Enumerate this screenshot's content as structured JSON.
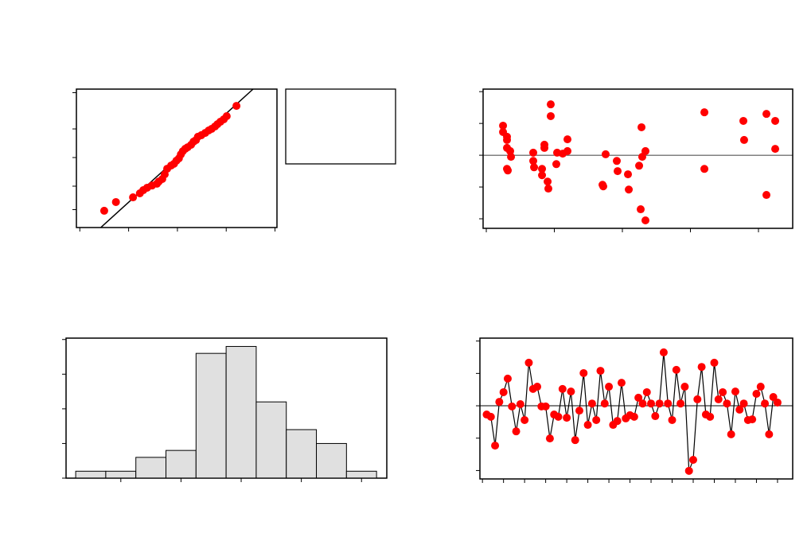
{
  "chart_data": [
    {
      "type": "probability",
      "color": "#ff0000",
      "x": [
        -1.5,
        -1.26,
        -0.91,
        -0.77,
        -0.7,
        -0.62,
        -0.52,
        -0.42,
        -0.38,
        -0.31,
        -0.26,
        -0.21,
        -0.13,
        -0.07,
        -0.02,
        0.03,
        0.07,
        0.11,
        0.16,
        0.21,
        0.28,
        0.33,
        0.38,
        0.42,
        0.49,
        0.57,
        0.64,
        0.7,
        0.77,
        0.82,
        0.88,
        0.95,
        1.01,
        1.21
      ],
      "y": [
        -2.38,
        -1.99,
        -1.78,
        -1.6,
        -1.46,
        -1.35,
        -1.25,
        -1.17,
        -1.07,
        -0.96,
        -0.75,
        -0.5,
        -0.36,
        -0.28,
        -0.14,
        -0.04,
        0.14,
        0.28,
        0.39,
        0.46,
        0.57,
        0.71,
        0.78,
        0.93,
        1.0,
        1.1,
        1.21,
        1.28,
        1.39,
        1.49,
        1.6,
        1.71,
        1.85,
        2.31
      ],
      "fit_line": {
        "x": [
          -1.57,
          1.55
        ],
        "y": [
          -3.13,
          3.06
        ]
      },
      "xlim": [
        -2.07,
        2.04
      ],
      "xticks": [
        -2,
        -1,
        0,
        1,
        2
      ],
      "ylim": [
        -3.13,
        3.06
      ],
      "yticks": [
        -2.33,
        -1.28,
        0,
        1.28,
        2.9
      ]
    },
    {
      "type": "scatter",
      "color": "#ff0000",
      "x": [
        12.46,
        12.46,
        13.04,
        13.04,
        13.04,
        13.51,
        13.63,
        13.04,
        13.16,
        16.9,
        16.9,
        17.02,
        18.19,
        18.19,
        19.01,
        19.12,
        18.54,
        18.54,
        19.47,
        19.47,
        20.29,
        20.41,
        21.23,
        21.93,
        21.93,
        27.08,
        27.19,
        27.54,
        29.18,
        29.3,
        30.82,
        30.94,
        32.46,
        32.69,
        32.81,
        32.92,
        33.39,
        33.39,
        42.05,
        42.05,
        47.78,
        47.89,
        51.17,
        51.17,
        52.46,
        52.46
      ],
      "y": [
        0.93,
        0.73,
        0.58,
        0.48,
        0.23,
        0.13,
        -0.05,
        -0.43,
        -0.48,
        0.08,
        -0.18,
        -0.38,
        -0.43,
        -0.63,
        -0.83,
        -1.05,
        0.23,
        0.33,
        1.6,
        1.23,
        -0.28,
        0.08,
        0.05,
        0.5,
        0.13,
        -0.93,
        -0.98,
        0.03,
        -0.18,
        -0.5,
        -0.6,
        -1.08,
        -0.33,
        -1.7,
        0.88,
        -0.05,
        -2.05,
        0.13,
        1.35,
        -0.43,
        1.08,
        0.48,
        1.3,
        -1.25,
        1.08,
        0.2
      ],
      "reference_line": 0,
      "xlim": [
        9.53,
        55.03
      ],
      "xticks": [
        10,
        20,
        30,
        40,
        50
      ],
      "ylim": [
        -2.3,
        2.08
      ],
      "yticks": [
        -2,
        -1,
        0,
        1,
        2
      ]
    },
    {
      "type": "histogram",
      "color": "#e0e0e0",
      "bins": [
        -2.75,
        -2.25,
        -1.75,
        -1.25,
        -0.75,
        -0.25,
        0.25,
        0.75,
        1.25,
        1.75,
        2.25
      ],
      "counts": [
        1,
        1,
        3,
        4,
        18,
        19,
        11,
        7,
        5,
        1
      ],
      "xlim": [
        -2.91,
        2.42
      ],
      "xticks": [
        -2,
        -1,
        0,
        1,
        2
      ],
      "ylim": [
        0,
        20.2
      ],
      "yticks": [
        0,
        5,
        10,
        15,
        20
      ]
    },
    {
      "type": "line",
      "color": "#ff0000",
      "x": [
        1,
        2,
        3,
        4,
        5,
        6,
        7,
        8,
        9,
        10,
        11,
        12,
        13,
        14,
        15,
        16,
        17,
        18,
        19,
        20,
        21,
        22,
        23,
        24,
        25,
        26,
        27,
        28,
        29,
        30,
        31,
        32,
        33,
        34,
        35,
        36,
        37,
        38,
        39,
        40,
        41,
        42,
        43,
        44,
        45,
        46,
        47,
        48,
        49,
        50,
        51,
        52,
        53,
        54,
        55,
        56,
        57,
        58,
        59,
        60,
        61,
        62,
        63,
        64,
        65,
        66,
        67,
        68,
        69,
        70
      ],
      "y": [
        -0.27,
        -0.34,
        -1.23,
        0.12,
        0.42,
        0.84,
        -0.02,
        -0.79,
        0.05,
        -0.44,
        1.33,
        0.52,
        0.59,
        -0.02,
        -0.02,
        -1.01,
        -0.27,
        -0.34,
        0.52,
        -0.37,
        0.44,
        -1.06,
        -0.15,
        1.01,
        -0.59,
        0.07,
        -0.44,
        1.08,
        0.07,
        0.59,
        -0.59,
        -0.47,
        0.71,
        -0.39,
        -0.29,
        -0.34,
        0.25,
        0.07,
        0.42,
        0.07,
        -0.32,
        0.07,
        1.65,
        0.07,
        -0.44,
        1.11,
        0.07,
        0.59,
        -2.01,
        -1.67,
        0.2,
        1.2,
        -0.27,
        -0.34,
        1.33,
        0.2,
        0.42,
        0.07,
        -0.88,
        0.44,
        -0.12,
        0.07,
        -0.44,
        -0.42,
        0.37,
        0.59,
        0.07,
        -0.88,
        0.27,
        0.1
      ],
      "reference_line": 0,
      "xlim": [
        -0.6,
        73.6
      ],
      "xticks": [
        0,
        5,
        10,
        15,
        20,
        25,
        30,
        35,
        40,
        45,
        50,
        55,
        60,
        65,
        70
      ],
      "ylim": [
        -2.26,
        2.09
      ],
      "yticks": [
        -2,
        -1,
        0,
        1,
        2
      ]
    }
  ]
}
